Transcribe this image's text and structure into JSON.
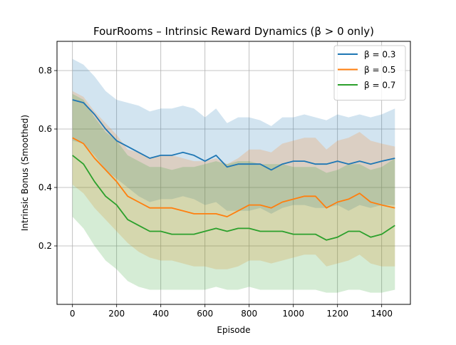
{
  "chart_data": {
    "type": "line",
    "title": "FourRooms – Intrinsic Reward Dynamics (β > 0 only)",
    "xlabel": "Episode",
    "ylabel": "Intrinsic Bonus (Smoothed)",
    "xlim": [
      -70,
      1530
    ],
    "ylim": [
      0.0,
      0.9
    ],
    "x_ticks": [
      0,
      200,
      400,
      600,
      800,
      1000,
      1200,
      1400
    ],
    "y_ticks": [
      0.2,
      0.4,
      0.6,
      0.8
    ],
    "grid": true,
    "legend_position": "top-right",
    "series": [
      {
        "name": "β = 0.3",
        "color": "#1f77b4",
        "x": [
          0,
          50,
          100,
          150,
          200,
          250,
          300,
          350,
          400,
          450,
          500,
          550,
          600,
          650,
          700,
          750,
          800,
          850,
          900,
          950,
          1000,
          1050,
          1100,
          1150,
          1200,
          1250,
          1300,
          1350,
          1400,
          1460
        ],
        "mean": [
          0.7,
          0.69,
          0.65,
          0.6,
          0.56,
          0.54,
          0.52,
          0.5,
          0.51,
          0.51,
          0.52,
          0.51,
          0.49,
          0.51,
          0.47,
          0.48,
          0.48,
          0.48,
          0.46,
          0.48,
          0.49,
          0.49,
          0.48,
          0.48,
          0.49,
          0.48,
          0.49,
          0.48,
          0.49,
          0.5
        ],
        "upper": [
          0.84,
          0.82,
          0.78,
          0.73,
          0.7,
          0.69,
          0.68,
          0.66,
          0.67,
          0.67,
          0.68,
          0.67,
          0.64,
          0.67,
          0.62,
          0.64,
          0.64,
          0.63,
          0.61,
          0.64,
          0.64,
          0.65,
          0.64,
          0.63,
          0.65,
          0.64,
          0.65,
          0.64,
          0.65,
          0.67
        ],
        "lower": [
          0.56,
          0.55,
          0.51,
          0.46,
          0.43,
          0.4,
          0.37,
          0.35,
          0.36,
          0.36,
          0.37,
          0.36,
          0.34,
          0.35,
          0.32,
          0.32,
          0.32,
          0.33,
          0.31,
          0.33,
          0.34,
          0.34,
          0.33,
          0.33,
          0.34,
          0.32,
          0.34,
          0.33,
          0.34,
          0.34
        ]
      },
      {
        "name": "β = 0.5",
        "color": "#ff7f0e",
        "x": [
          0,
          50,
          100,
          150,
          200,
          250,
          300,
          350,
          400,
          450,
          500,
          550,
          600,
          650,
          700,
          750,
          800,
          850,
          900,
          950,
          1000,
          1050,
          1100,
          1150,
          1200,
          1250,
          1300,
          1350,
          1400,
          1460
        ],
        "mean": [
          0.57,
          0.55,
          0.5,
          0.46,
          0.42,
          0.37,
          0.35,
          0.33,
          0.33,
          0.33,
          0.32,
          0.31,
          0.31,
          0.31,
          0.3,
          0.32,
          0.34,
          0.34,
          0.33,
          0.35,
          0.36,
          0.37,
          0.37,
          0.33,
          0.35,
          0.36,
          0.38,
          0.35,
          0.34,
          0.33
        ],
        "upper": [
          0.73,
          0.71,
          0.66,
          0.62,
          0.58,
          0.53,
          0.52,
          0.5,
          0.51,
          0.51,
          0.5,
          0.49,
          0.49,
          0.5,
          0.48,
          0.5,
          0.53,
          0.53,
          0.52,
          0.55,
          0.56,
          0.57,
          0.57,
          0.53,
          0.56,
          0.57,
          0.59,
          0.56,
          0.55,
          0.54
        ],
        "lower": [
          0.41,
          0.38,
          0.33,
          0.29,
          0.25,
          0.21,
          0.18,
          0.16,
          0.15,
          0.15,
          0.14,
          0.13,
          0.13,
          0.12,
          0.12,
          0.13,
          0.15,
          0.15,
          0.14,
          0.15,
          0.16,
          0.17,
          0.17,
          0.13,
          0.14,
          0.15,
          0.17,
          0.14,
          0.13,
          0.13
        ]
      },
      {
        "name": "β = 0.7",
        "color": "#2ca02c",
        "x": [
          0,
          50,
          100,
          150,
          200,
          250,
          300,
          350,
          400,
          450,
          500,
          550,
          600,
          650,
          700,
          750,
          800,
          850,
          900,
          950,
          1000,
          1050,
          1100,
          1150,
          1200,
          1250,
          1300,
          1350,
          1400,
          1460
        ],
        "mean": [
          0.51,
          0.48,
          0.42,
          0.37,
          0.34,
          0.29,
          0.27,
          0.25,
          0.25,
          0.24,
          0.24,
          0.24,
          0.25,
          0.26,
          0.25,
          0.26,
          0.26,
          0.25,
          0.25,
          0.25,
          0.24,
          0.24,
          0.24,
          0.22,
          0.23,
          0.25,
          0.25,
          0.23,
          0.24,
          0.27
        ],
        "upper": [
          0.72,
          0.7,
          0.64,
          0.59,
          0.56,
          0.51,
          0.49,
          0.47,
          0.47,
          0.46,
          0.47,
          0.47,
          0.48,
          0.49,
          0.48,
          0.49,
          0.49,
          0.48,
          0.48,
          0.48,
          0.47,
          0.47,
          0.47,
          0.45,
          0.46,
          0.48,
          0.48,
          0.46,
          0.47,
          0.5
        ],
        "lower": [
          0.3,
          0.26,
          0.2,
          0.15,
          0.12,
          0.08,
          0.06,
          0.05,
          0.05,
          0.05,
          0.05,
          0.05,
          0.05,
          0.06,
          0.05,
          0.05,
          0.06,
          0.05,
          0.05,
          0.05,
          0.05,
          0.05,
          0.05,
          0.04,
          0.04,
          0.05,
          0.05,
          0.04,
          0.04,
          0.05
        ]
      }
    ]
  }
}
